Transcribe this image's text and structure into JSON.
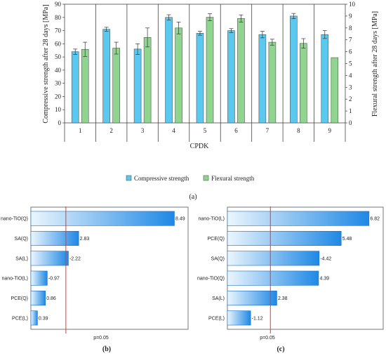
{
  "colors": {
    "compressive": "#5bc8f0",
    "flexural": "#8fd48f",
    "pareto_dark": "#1e88e5",
    "pareto_light": "#e8f4fd",
    "pline": "#e53935"
  },
  "captions": {
    "a": "(a)",
    "b": "(b)",
    "c": "(c)"
  },
  "chart_data": [
    {
      "type": "bar",
      "xlabel": "CPDK",
      "ylabel": "Compressive strength after 28 days [MPa]",
      "y2label": "Flexural strength after 28 days [MPa]",
      "categories": [
        "1",
        "2",
        "3",
        "4",
        "5",
        "6",
        "7",
        "8",
        "9"
      ],
      "ylim": [
        0,
        90
      ],
      "y2lim": [
        0,
        10
      ],
      "yticks": [
        "0",
        "10",
        "20",
        "30",
        "40",
        "50",
        "60",
        "70",
        "80",
        "90"
      ],
      "y2ticks": [
        "0",
        "1",
        "2",
        "3",
        "4",
        "5",
        "6",
        "7",
        "8",
        "9",
        "10"
      ],
      "legend_position": "bottom",
      "series": [
        {
          "name": "Compressive strength",
          "axis": "left",
          "values": [
            54,
            71,
            56,
            80,
            68,
            70,
            67,
            81,
            67
          ],
          "errors": [
            2,
            1.5,
            4,
            2,
            1.5,
            1.5,
            2.5,
            2,
            3
          ]
        },
        {
          "name": "Flexural strength",
          "axis": "right",
          "values": [
            6.2,
            6.3,
            7.2,
            8.0,
            8.9,
            8.8,
            6.8,
            6.7,
            5.5
          ],
          "errors": [
            0.6,
            0.5,
            0.8,
            0.5,
            0.3,
            0.3,
            0.25,
            0.4,
            0
          ]
        }
      ]
    },
    {
      "type": "pareto",
      "caption": "(b)",
      "categories": [
        "nano-TiO(Q)",
        "SA(Q)",
        "SA(L)",
        "nano-TiO(L)",
        "PCE(Q)",
        "PCE(L)"
      ],
      "values": [
        8.49,
        2.83,
        -2.22,
        -0.97,
        0.86,
        0.39
      ],
      "value_labels": [
        "8.49",
        "2.83",
        "-2.22",
        "-0.97",
        "0.86",
        "0.39"
      ],
      "pline_label": "p=0.05",
      "pline_value": 2.07,
      "xmax": 9.3
    },
    {
      "type": "pareto",
      "caption": "(c)",
      "categories": [
        "nano-TiO(L)",
        "PCE(Q)",
        "SA(Q)",
        "nano-TiO(Q)",
        "SA(L)",
        "PCE(L)"
      ],
      "values": [
        6.82,
        5.48,
        -4.42,
        4.39,
        2.38,
        -1.12
      ],
      "value_labels": [
        "6.82",
        "5.48",
        "-4.42",
        "4.39",
        "2.38",
        "-1.12"
      ],
      "pline_label": "p=0.05",
      "pline_value": 2.07,
      "xmax": 7.5
    }
  ]
}
